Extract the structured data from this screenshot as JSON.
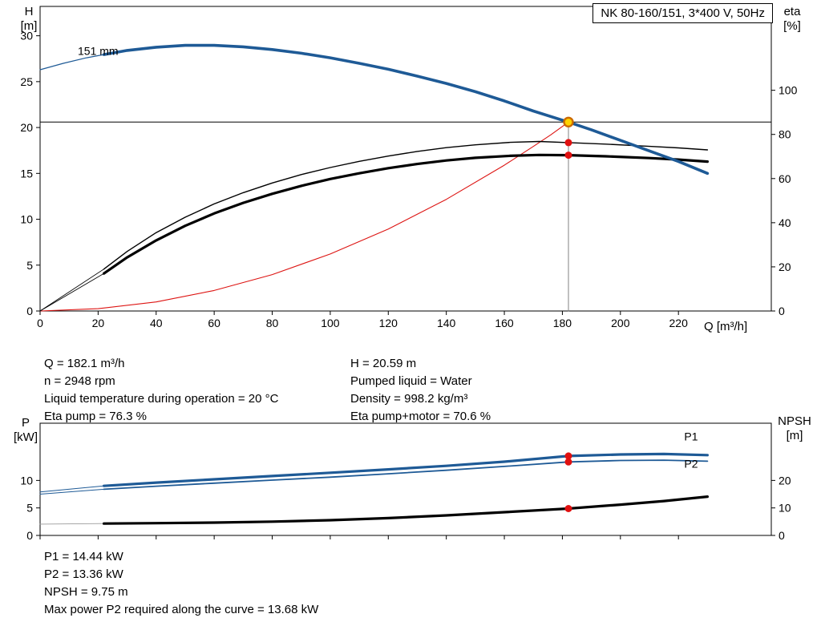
{
  "title_box": "NK 80-160/151, 3*400 V, 50Hz",
  "axis_corner_labels": {
    "top_left": [
      "H",
      "[m]"
    ],
    "top_right": [
      "eta",
      "[%]"
    ],
    "x_axis": "Q [m³/h]",
    "bottom_left": [
      "P",
      "[kW]"
    ],
    "bottom_right": [
      "NPSH",
      "[m]"
    ]
  },
  "top_info": {
    "left": [
      "Q = 182.1 m³/h",
      "n = 2948 rpm",
      "Liquid temperature during operation = 20 °C",
      "Eta pump = 76.3 %"
    ],
    "right": [
      "H = 20.59 m",
      "Pumped liquid = Water",
      "Density = 998.2 kg/m³",
      "Eta pump+motor = 70.6 %"
    ]
  },
  "results": [
    "P1 = 14.44 kW",
    "P2 = 13.36 kW",
    "NPSH = 9.75 m",
    "Max power P2 required along the curve = 13.68 kW"
  ],
  "chart_data": [
    {
      "type": "line",
      "title": "NK 80-160/151, 3*400 V, 50Hz",
      "xlabel": "Q [m³/h]",
      "ylabel_left": "H [m]",
      "ylabel_right": "eta [%]",
      "xlim": [
        0,
        252
      ],
      "ylim_left": [
        0,
        33.2
      ],
      "ylim_right": [
        0,
        138
      ],
      "x_ticks": [
        0,
        20,
        40,
        60,
        80,
        100,
        120,
        140,
        160,
        180,
        200,
        220
      ],
      "y_ticks_left": [
        0,
        5,
        10,
        15,
        20,
        25,
        30
      ],
      "y_ticks_right": [
        0,
        20,
        40,
        60,
        80,
        100
      ],
      "duty_point": {
        "q": 182.1,
        "h": 20.59,
        "eta_pump": 76.3,
        "eta_pump_motor": 70.6
      },
      "series": [
        {
          "name": "duty-head-line",
          "axis": "left",
          "color": "#000000",
          "width": 1,
          "points": [
            [
              0,
              20.59
            ],
            [
              252,
              20.59
            ]
          ]
        },
        {
          "name": "duty-flow-line",
          "axis": "left",
          "color": "#808080",
          "width": 1,
          "points": [
            [
              182.1,
              0
            ],
            [
              182.1,
              20.59
            ]
          ]
        },
        {
          "name": "system-curve",
          "axis": "left",
          "color": "#dd1412",
          "width": 1.1,
          "points": [
            [
              0,
              0
            ],
            [
              20,
              0.25
            ],
            [
              40,
              0.99
            ],
            [
              60,
              2.24
            ],
            [
              80,
              3.97
            ],
            [
              100,
              6.21
            ],
            [
              120,
              8.94
            ],
            [
              140,
              12.17
            ],
            [
              160,
              15.89
            ],
            [
              170,
              17.94
            ],
            [
              176,
              19.2
            ],
            [
              182.1,
              20.59
            ]
          ]
        },
        {
          "name": "eta-pump-lead",
          "axis": "right",
          "color": "#000000",
          "width": 0.9,
          "points": [
            [
              0,
              0
            ],
            [
              22,
              19
            ]
          ]
        },
        {
          "name": "eta-pump-motor-lead",
          "axis": "right",
          "color": "#000000",
          "width": 0.9,
          "points": [
            [
              0,
              0
            ],
            [
              22,
              17
            ]
          ]
        },
        {
          "name": "eta-pump-curve",
          "axis": "right",
          "color": "#000000",
          "width": 1.4,
          "points": [
            [
              22,
              19
            ],
            [
              30,
              27
            ],
            [
              40,
              35.5
            ],
            [
              50,
              42.5
            ],
            [
              60,
              48.5
            ],
            [
              70,
              53.6
            ],
            [
              80,
              58
            ],
            [
              90,
              61.8
            ],
            [
              100,
              65
            ],
            [
              110,
              67.8
            ],
            [
              120,
              70.2
            ],
            [
              130,
              72.3
            ],
            [
              140,
              74
            ],
            [
              150,
              75.3
            ],
            [
              162,
              76.4
            ],
            [
              172,
              76.8
            ],
            [
              182.1,
              76.3
            ],
            [
              195,
              75.6
            ],
            [
              210,
              74.6
            ],
            [
              220,
              73.9
            ],
            [
              230,
              73
            ]
          ]
        },
        {
          "name": "eta-pump-motor-curve",
          "axis": "right",
          "color": "#000000",
          "width": 3.2,
          "points": [
            [
              22,
              17
            ],
            [
              30,
              24.3
            ],
            [
              40,
              32
            ],
            [
              50,
              38.6
            ],
            [
              60,
              44.2
            ],
            [
              70,
              49
            ],
            [
              80,
              53.1
            ],
            [
              90,
              56.7
            ],
            [
              100,
              59.8
            ],
            [
              110,
              62.4
            ],
            [
              120,
              64.7
            ],
            [
              130,
              66.6
            ],
            [
              140,
              68.2
            ],
            [
              150,
              69.4
            ],
            [
              162,
              70.3
            ],
            [
              172,
              70.7
            ],
            [
              182.1,
              70.6
            ],
            [
              195,
              70.1
            ],
            [
              210,
              69.3
            ],
            [
              220,
              68.6
            ],
            [
              230,
              67.7
            ]
          ]
        },
        {
          "name": "head-curve-lead",
          "axis": "left",
          "color": "#1e5a96",
          "width": 1.2,
          "points": [
            [
              0,
              26.3
            ],
            [
              8,
              27.0
            ],
            [
              16,
              27.6
            ],
            [
              22,
              27.95
            ]
          ]
        },
        {
          "name": "head-curve",
          "axis": "left",
          "color": "#1e5a96",
          "width": 3.6,
          "points": [
            [
              22,
              27.95
            ],
            [
              30,
              28.4
            ],
            [
              40,
              28.75
            ],
            [
              50,
              28.95
            ],
            [
              60,
              28.95
            ],
            [
              70,
              28.8
            ],
            [
              80,
              28.5
            ],
            [
              90,
              28.1
            ],
            [
              100,
              27.6
            ],
            [
              110,
              27.0
            ],
            [
              120,
              26.35
            ],
            [
              130,
              25.6
            ],
            [
              140,
              24.8
            ],
            [
              150,
              23.9
            ],
            [
              160,
              22.9
            ],
            [
              170,
              21.8
            ],
            [
              182.1,
              20.59
            ],
            [
              190,
              19.75
            ],
            [
              200,
              18.6
            ],
            [
              210,
              17.45
            ],
            [
              220,
              16.3
            ],
            [
              230,
              15.0
            ]
          ]
        }
      ],
      "markers": [
        {
          "name": "eta-pump-duty-dot",
          "x": 182.1,
          "y": 76.3,
          "axis": "right",
          "r": 4.5,
          "fill": "#e01010",
          "stroke": "none",
          "stroke_width": 0
        },
        {
          "name": "eta-pump-motor-duty-dot",
          "x": 182.1,
          "y": 70.6,
          "axis": "right",
          "r": 4.5,
          "fill": "#e01010",
          "stroke": "none",
          "stroke_width": 0
        },
        {
          "name": "duty-point",
          "x": 182.1,
          "y": 20.59,
          "axis": "left",
          "r": 5.5,
          "fill": "#ffd300",
          "stroke": "#cc6a00",
          "stroke_width": 2.4
        }
      ],
      "annotations": [
        {
          "text": "151 mm",
          "x": 13,
          "y": 27.9,
          "axis": "left",
          "anchor": "start",
          "color": "#000000",
          "size": 14
        }
      ]
    },
    {
      "type": "line",
      "title": "",
      "xlabel": "",
      "ylabel_left": "P [kW]",
      "ylabel_right": "NPSH [m]",
      "xlim": [
        0,
        252
      ],
      "ylim_left": [
        0,
        20.4
      ],
      "ylim_right": [
        0,
        40.8
      ],
      "x_ticks": [
        0,
        20,
        40,
        60,
        80,
        100,
        120,
        140,
        160,
        180,
        200,
        220
      ],
      "show_x_tick_labels": false,
      "y_ticks_left": [
        0,
        5,
        10
      ],
      "y_ticks_right": [
        0,
        10,
        20
      ],
      "duty_point": {
        "q": 182.1,
        "p1": 14.44,
        "p2": 13.36,
        "npsh": 9.75
      },
      "series": [
        {
          "name": "npsh-lead",
          "axis": "right",
          "color": "#9a9a9a",
          "width": 0.9,
          "points": [
            [
              0,
              4.1
            ],
            [
              22,
              4.3
            ]
          ]
        },
        {
          "name": "p1-lead",
          "axis": "left",
          "color": "#1e5a96",
          "width": 1,
          "points": [
            [
              0,
              7.9
            ],
            [
              22,
              9.0
            ]
          ]
        },
        {
          "name": "p2-lead",
          "axis": "left",
          "color": "#1e5a96",
          "width": 1,
          "points": [
            [
              0,
              7.5
            ],
            [
              22,
              8.4
            ]
          ]
        },
        {
          "name": "npsh-curve",
          "axis": "right",
          "color": "#000000",
          "width": 3.2,
          "points": [
            [
              22,
              4.3
            ],
            [
              40,
              4.45
            ],
            [
              60,
              4.65
            ],
            [
              80,
              5.0
            ],
            [
              100,
              5.55
            ],
            [
              120,
              6.3
            ],
            [
              140,
              7.3
            ],
            [
              160,
              8.45
            ],
            [
              182.1,
              9.75
            ],
            [
              200,
              11.2
            ],
            [
              215,
              12.5
            ],
            [
              230,
              14.1
            ]
          ]
        },
        {
          "name": "p2-curve",
          "axis": "left",
          "color": "#1e5a96",
          "width": 1.8,
          "points": [
            [
              22,
              8.4
            ],
            [
              40,
              8.95
            ],
            [
              60,
              9.5
            ],
            [
              80,
              10.05
            ],
            [
              100,
              10.6
            ],
            [
              120,
              11.2
            ],
            [
              140,
              11.85
            ],
            [
              160,
              12.55
            ],
            [
              182.1,
              13.36
            ],
            [
              200,
              13.62
            ],
            [
              215,
              13.68
            ],
            [
              230,
              13.5
            ]
          ]
        },
        {
          "name": "p1-curve",
          "axis": "left",
          "color": "#1e5a96",
          "width": 3.2,
          "points": [
            [
              22,
              9.0
            ],
            [
              40,
              9.6
            ],
            [
              60,
              10.2
            ],
            [
              80,
              10.8
            ],
            [
              100,
              11.4
            ],
            [
              120,
              12.0
            ],
            [
              140,
              12.65
            ],
            [
              160,
              13.4
            ],
            [
              182.1,
              14.44
            ],
            [
              200,
              14.72
            ],
            [
              215,
              14.8
            ],
            [
              230,
              14.6
            ]
          ]
        }
      ],
      "markers": [
        {
          "name": "p1-duty-dot",
          "x": 182.1,
          "y": 14.44,
          "axis": "left",
          "r": 4.5,
          "fill": "#e01010",
          "stroke": "none",
          "stroke_width": 0
        },
        {
          "name": "p2-duty-dot",
          "x": 182.1,
          "y": 13.36,
          "axis": "left",
          "r": 4.5,
          "fill": "#e01010",
          "stroke": "none",
          "stroke_width": 0
        },
        {
          "name": "npsh-duty-dot",
          "x": 182.1,
          "y": 9.75,
          "axis": "right",
          "r": 4.5,
          "fill": "#e01010",
          "stroke": "none",
          "stroke_width": 0
        }
      ],
      "annotations": [
        {
          "text": "P1",
          "x": 222,
          "y": 17.3,
          "axis": "left",
          "anchor": "start",
          "color": "#1e5a96",
          "size": 15
        },
        {
          "text": "P2",
          "x": 222,
          "y": 12.3,
          "axis": "left",
          "anchor": "start",
          "color": "#1e5a96",
          "size": 15
        }
      ]
    }
  ]
}
